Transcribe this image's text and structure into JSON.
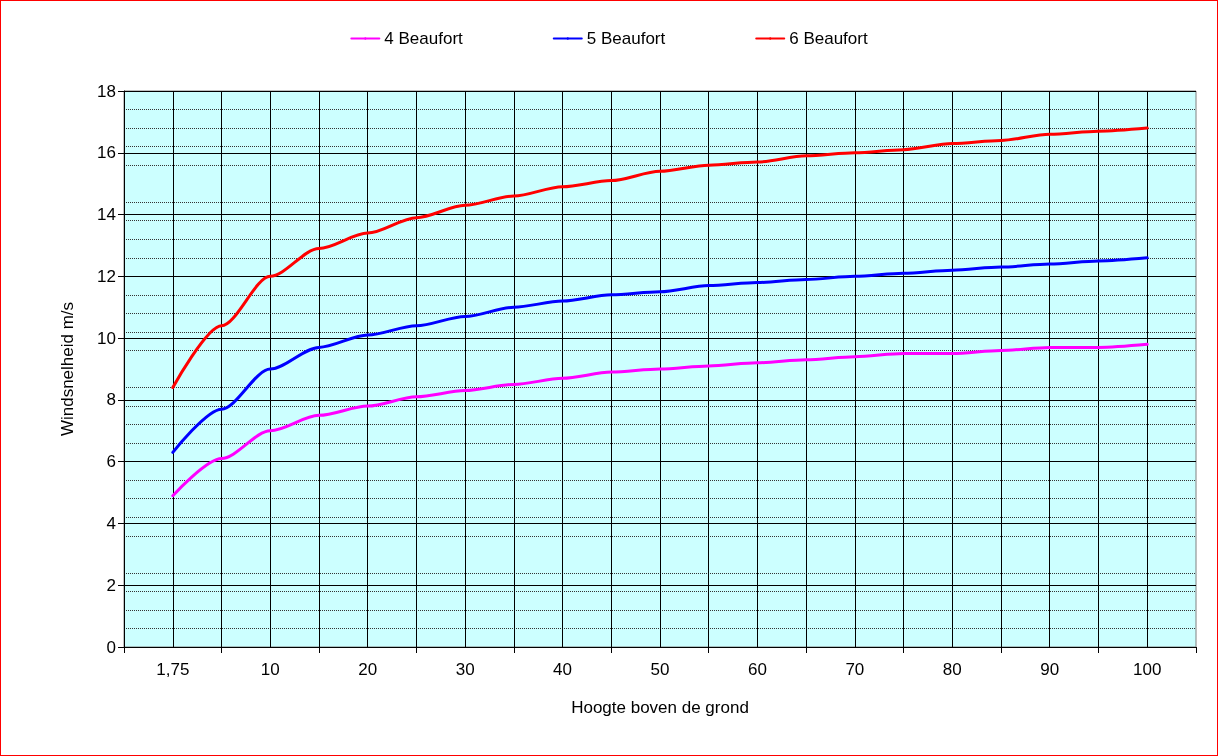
{
  "chart_data": {
    "type": "line",
    "xlabel": "Hoogte boven de grond",
    "ylabel": "Windsnelheid m/s",
    "categories": [
      "1,75",
      null,
      "10",
      null,
      "20",
      null,
      "30",
      null,
      "40",
      null,
      "50",
      null,
      "60",
      null,
      "70",
      null,
      "80",
      null,
      "90",
      null,
      "100"
    ],
    "series": [
      {
        "name": "4 Beaufort",
        "color": "#ff00ff",
        "values": [
          4.9,
          6.1,
          7.0,
          7.5,
          7.8,
          8.1,
          8.3,
          8.5,
          8.7,
          8.9,
          9.0,
          9.1,
          9.2,
          9.3,
          9.4,
          9.5,
          9.5,
          9.6,
          9.7,
          9.7,
          9.8
        ]
      },
      {
        "name": "5 Beaufort",
        "color": "#0000ff",
        "values": [
          6.3,
          7.7,
          9.0,
          9.7,
          10.1,
          10.4,
          10.7,
          11.0,
          11.2,
          11.4,
          11.5,
          11.7,
          11.8,
          11.9,
          12.0,
          12.1,
          12.2,
          12.3,
          12.4,
          12.5,
          12.6
        ]
      },
      {
        "name": "6 Beaufort",
        "color": "#ff0000",
        "values": [
          8.4,
          10.4,
          12.0,
          12.9,
          13.4,
          13.9,
          14.3,
          14.6,
          14.9,
          15.1,
          15.4,
          15.6,
          15.7,
          15.9,
          16.0,
          16.1,
          16.3,
          16.4,
          16.6,
          16.7,
          16.8
        ]
      }
    ],
    "ylim": [
      0,
      18
    ],
    "yticks": [
      0,
      2,
      4,
      6,
      8,
      10,
      12,
      14,
      16,
      18
    ],
    "grid": true,
    "legend": "top",
    "marker": "none",
    "line_style": "solid"
  }
}
